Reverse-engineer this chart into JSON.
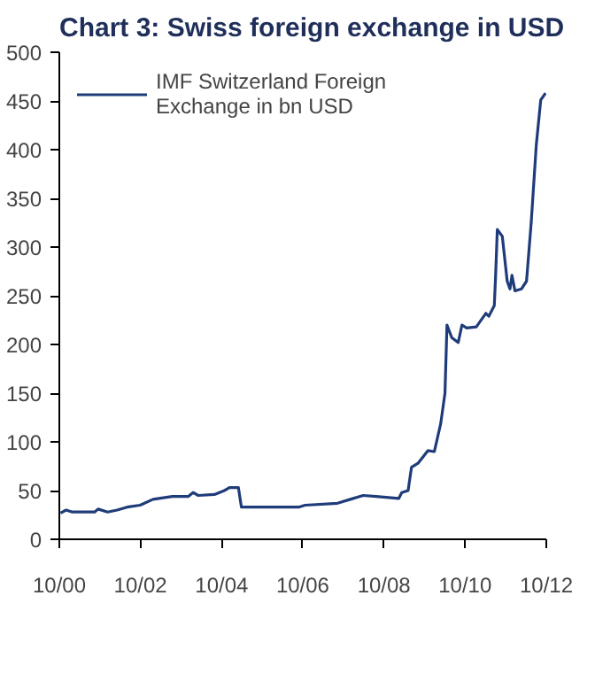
{
  "chart_data": {
    "type": "line",
    "title": "Chart 3: Swiss foreign exchange in USD",
    "x": [
      "2000-10-12",
      "2000-12-01",
      "2001-01-25",
      "2001-08-15",
      "2001-09-15",
      "2001-12-10",
      "2002-03-05",
      "2002-06-03",
      "2002-09-28",
      "2003-01-22",
      "2003-07-15",
      "2003-12-07",
      "2004-01-18",
      "2004-03-04",
      "2004-07-28",
      "2004-10-25",
      "2004-12-10",
      "2005-03-01",
      "2005-03-28",
      "2006-08-25",
      "2006-10-22",
      "2007-08-10",
      "2007-12-03",
      "2008-03-28",
      "2008-07-22",
      "2009-02-12",
      "2009-03-10",
      "2009-05-06",
      "2009-06-06",
      "2009-08-03",
      "2009-10-31",
      "2009-12-28",
      "2010-02-24",
      "2010-04-03",
      "2010-04-21",
      "2010-06-03",
      "2010-07-31",
      "2010-09-03",
      "2010-10-15",
      "2011-01-10",
      "2011-04-06",
      "2011-05-03",
      "2011-06-21",
      "2011-07-03",
      "2011-07-18",
      "2011-09-01",
      "2011-10-15",
      "2011-11-09",
      "2011-11-27",
      "2011-12-24",
      "2012-02-20",
      "2012-04-06",
      "2012-05-18",
      "2012-07-03",
      "2012-08-12",
      "2012-09-24"
    ],
    "series": [
      {
        "name": "IMF Switzerland Foreign Exchange in bn USD",
        "color": "#1f3c7a",
        "values": [
          27,
          30,
          28,
          28,
          31,
          28,
          30,
          33,
          35,
          41,
          44,
          44,
          48,
          45,
          46,
          50,
          53,
          53,
          33,
          33,
          35,
          37,
          41,
          45,
          44,
          42,
          48,
          50,
          74,
          78,
          91,
          90,
          119,
          150,
          220,
          207,
          202,
          220,
          217,
          218,
          232,
          229,
          240,
          271,
          318,
          311,
          265,
          257,
          271,
          255,
          257,
          265,
          325,
          405,
          451,
          458
        ]
      }
    ],
    "xlim": [
      "2000-10-01",
      "2012-10-01"
    ],
    "xticks": [
      {
        "value": "2000-10-01",
        "label": "10/00"
      },
      {
        "value": "2002-10-01",
        "label": "10/02"
      },
      {
        "value": "2004-10-01",
        "label": "10/04"
      },
      {
        "value": "2006-10-01",
        "label": "10/06"
      },
      {
        "value": "2008-10-01",
        "label": "10/08"
      },
      {
        "value": "2010-10-01",
        "label": "10/10"
      },
      {
        "value": "2012-10-01",
        "label": "10/12"
      }
    ],
    "ylim": [
      0,
      500
    ],
    "yticks": [
      0,
      50,
      100,
      150,
      200,
      250,
      300,
      350,
      400,
      450,
      500
    ],
    "grid": false,
    "legend": "top left",
    "line_style": "solid",
    "marker": "none"
  }
}
